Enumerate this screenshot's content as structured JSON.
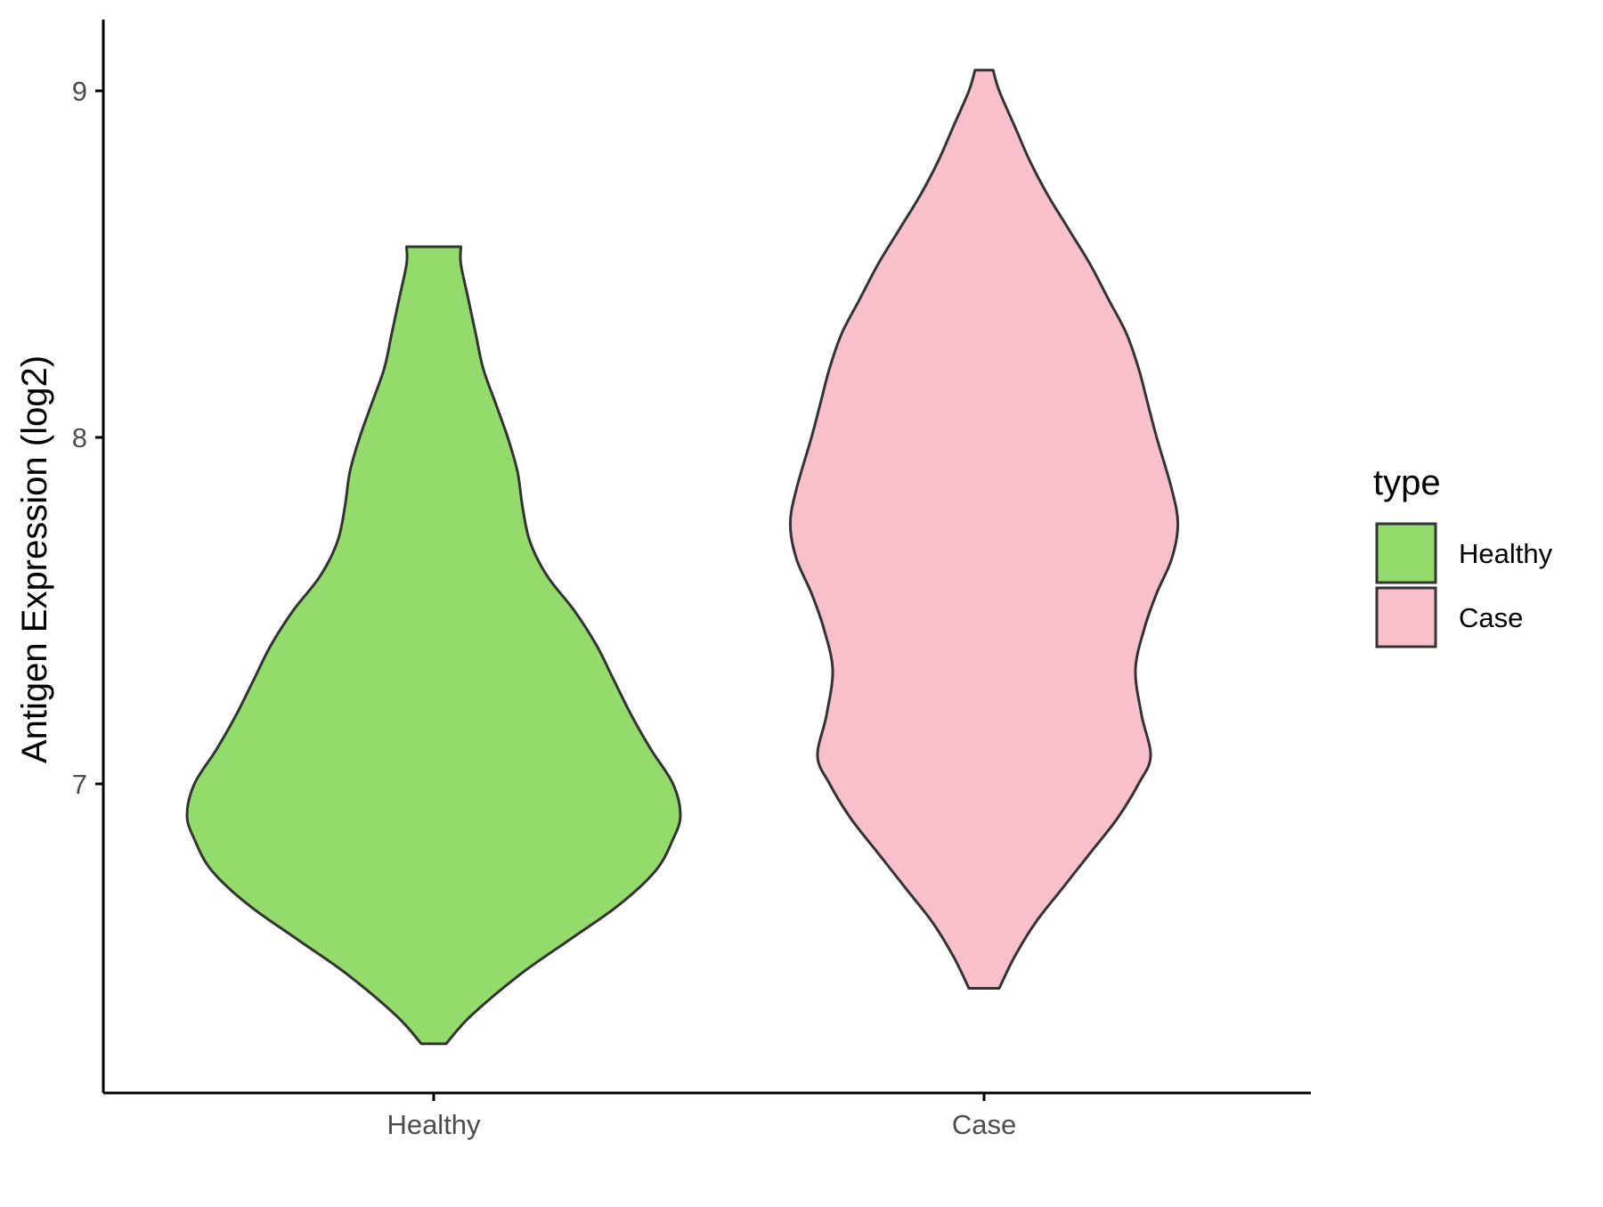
{
  "chart_data": {
    "type": "violin",
    "title": "",
    "xlabel": "",
    "ylabel": "Antigen Expression (log2)",
    "categories": [
      "Healthy",
      "Case"
    ],
    "yticks": [
      7,
      8,
      9
    ],
    "ylim": [
      6.15,
      9.2
    ],
    "grid": false,
    "legend": {
      "title": "type",
      "position": "right",
      "entries": [
        {
          "label": "Healthy",
          "color": "#93dc6b"
        },
        {
          "label": "Case",
          "color": "#f7c0cb"
        }
      ]
    },
    "series": [
      {
        "name": "Healthy",
        "color": "#93dc6b",
        "outline": "#333333",
        "ymin": 6.25,
        "ymax": 8.55,
        "profile": [
          [
            6.25,
            0.05
          ],
          [
            6.33,
            0.15
          ],
          [
            6.45,
            0.35
          ],
          [
            6.55,
            0.55
          ],
          [
            6.65,
            0.75
          ],
          [
            6.75,
            0.9
          ],
          [
            6.84,
            0.97
          ],
          [
            6.91,
            1.0
          ],
          [
            7.0,
            0.97
          ],
          [
            7.1,
            0.88
          ],
          [
            7.2,
            0.8
          ],
          [
            7.3,
            0.73
          ],
          [
            7.4,
            0.66
          ],
          [
            7.5,
            0.57
          ],
          [
            7.6,
            0.46
          ],
          [
            7.7,
            0.39
          ],
          [
            7.8,
            0.36
          ],
          [
            7.9,
            0.34
          ],
          [
            8.0,
            0.3
          ],
          [
            8.1,
            0.25
          ],
          [
            8.2,
            0.2
          ],
          [
            8.3,
            0.17
          ],
          [
            8.4,
            0.14
          ],
          [
            8.5,
            0.11
          ],
          [
            8.55,
            0.11
          ]
        ]
      },
      {
        "name": "Case",
        "color": "#f7c0cb",
        "outline": "#333333",
        "ymin": 6.41,
        "ymax": 9.06,
        "profile": [
          [
            6.41,
            0.05
          ],
          [
            6.5,
            0.1
          ],
          [
            6.6,
            0.17
          ],
          [
            6.7,
            0.26
          ],
          [
            6.8,
            0.35
          ],
          [
            6.9,
            0.44
          ],
          [
            7.0,
            0.51
          ],
          [
            7.08,
            0.55
          ],
          [
            7.2,
            0.52
          ],
          [
            7.33,
            0.5
          ],
          [
            7.45,
            0.53
          ],
          [
            7.55,
            0.57
          ],
          [
            7.65,
            0.62
          ],
          [
            7.75,
            0.64
          ],
          [
            7.85,
            0.62
          ],
          [
            8.0,
            0.57
          ],
          [
            8.1,
            0.54
          ],
          [
            8.2,
            0.51
          ],
          [
            8.3,
            0.47
          ],
          [
            8.4,
            0.41
          ],
          [
            8.5,
            0.35
          ],
          [
            8.6,
            0.28
          ],
          [
            8.7,
            0.21
          ],
          [
            8.8,
            0.15
          ],
          [
            8.9,
            0.1
          ],
          [
            9.0,
            0.05
          ],
          [
            9.06,
            0.03
          ]
        ]
      }
    ]
  }
}
